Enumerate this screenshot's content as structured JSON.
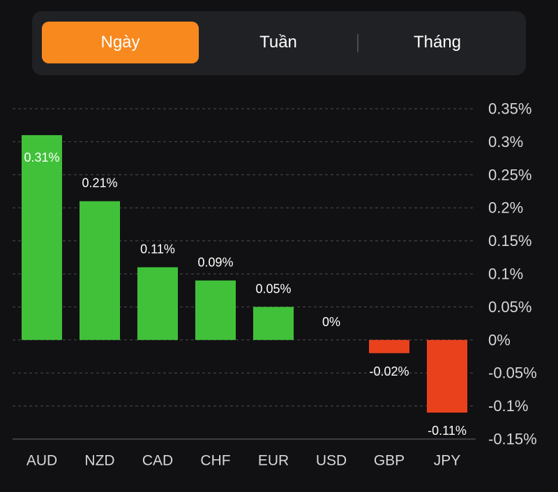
{
  "tabs": [
    {
      "label": "Ngày",
      "active": true
    },
    {
      "label": "Tuần",
      "active": false
    },
    {
      "label": "Tháng",
      "active": false
    }
  ],
  "colors": {
    "accent": "#f7891f",
    "positive": "#41c13a",
    "negative": "#e8411c"
  },
  "chart_data": {
    "type": "bar",
    "categories": [
      "AUD",
      "NZD",
      "CAD",
      "CHF",
      "EUR",
      "USD",
      "GBP",
      "JPY"
    ],
    "values": [
      0.31,
      0.21,
      0.11,
      0.09,
      0.05,
      0,
      -0.02,
      -0.11
    ],
    "data_labels": [
      "0.31%",
      "0.21%",
      "0.11%",
      "0.09%",
      "0.05%",
      "0%",
      "-0.02%",
      "-0.11%"
    ],
    "yticks": [
      0.35,
      0.3,
      0.25,
      0.2,
      0.15,
      0.1,
      0.05,
      0,
      -0.05,
      -0.1,
      -0.15
    ],
    "ytick_labels": [
      "0.35%",
      "0.3%",
      "0.25%",
      "0.2%",
      "0.15%",
      "0.1%",
      "0.05%",
      "0%",
      "-0.05%",
      "-0.1%",
      "-0.15%"
    ],
    "ylim": [
      -0.15,
      0.35
    ],
    "grid": true,
    "y_axis_position": "right"
  }
}
